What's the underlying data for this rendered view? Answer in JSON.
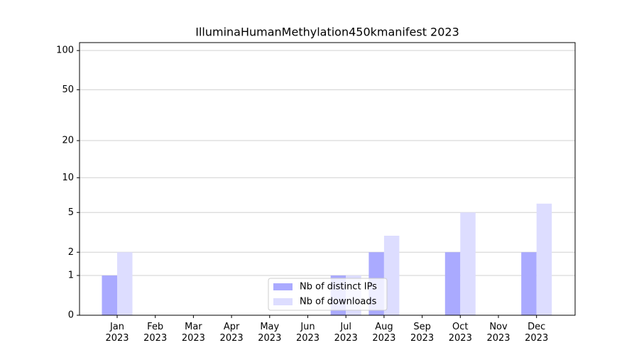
{
  "chart_data": {
    "type": "bar",
    "title": "IlluminaHumanMethylation450kmanifest 2023",
    "categories": [
      "Jan 2023",
      "Feb 2023",
      "Mar 2023",
      "Apr 2023",
      "May 2023",
      "Jun 2023",
      "Jul 2023",
      "Aug 2023",
      "Sep 2023",
      "Oct 2023",
      "Nov 2023",
      "Dec 2023"
    ],
    "series": [
      {
        "name": "Nb of distinct IPs",
        "color": "#aaaaff",
        "values": [
          1,
          0,
          0,
          0,
          0,
          0,
          1,
          2,
          0,
          2,
          0,
          2
        ]
      },
      {
        "name": "Nb of downloads",
        "color": "#ddddff",
        "values": [
          2,
          0,
          0,
          0,
          0,
          0,
          1,
          3,
          0,
          5,
          0,
          6
        ]
      }
    ],
    "yscale": "log1p",
    "ylim": [
      0,
      115
    ],
    "yticks": [
      0,
      1,
      2,
      5,
      10,
      20,
      50,
      100
    ],
    "grid": true,
    "legend": "lower center"
  }
}
